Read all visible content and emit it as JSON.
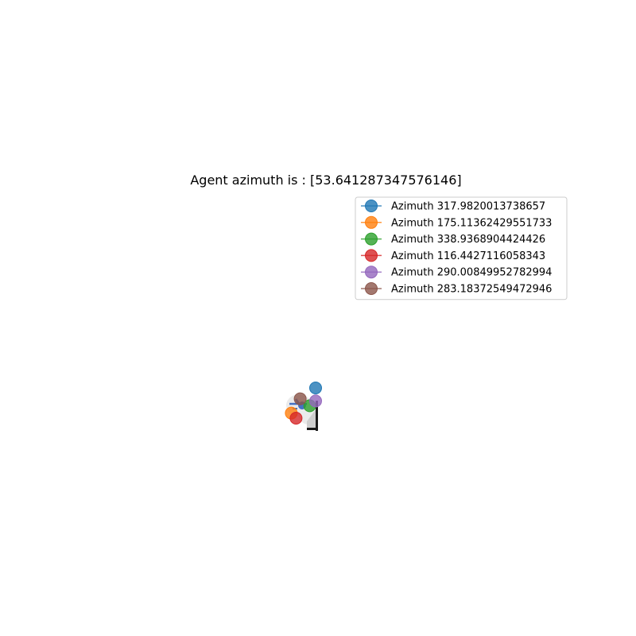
{
  "chart_data": {
    "type": "scatter",
    "title": "Agent azimuth is : [53.641287347576146]",
    "xlabel": "",
    "ylabel": "",
    "axes_visible": false,
    "grid": false,
    "legend_position": "upper-right",
    "series": [
      {
        "name": "Azimuth 317.9820013738657",
        "color": "#1f77b4",
        "x": [
          0.55
        ],
        "y": [
          1.1
        ]
      },
      {
        "name": "Azimuth 175.11362429551733",
        "color": "#ff7f0e",
        "x": [
          -0.98
        ],
        "y": [
          -0.48
        ]
      },
      {
        "name": "Azimuth 338.9368904424426",
        "color": "#2ca02c",
        "x": [
          0.18
        ],
        "y": [
          -0.02
        ]
      },
      {
        "name": "Azimuth 116.4427116058343",
        "color": "#d62728",
        "x": [
          -0.68
        ],
        "y": [
          -0.8
        ]
      },
      {
        "name": "Azimuth 290.00849952782994",
        "color": "#9467bd",
        "x": [
          0.55
        ],
        "y": [
          0.28
        ]
      },
      {
        "name": "Azimuth 283.18372549472946",
        "color": "#8c564b",
        "x": [
          -0.42
        ],
        "y": [
          0.42
        ]
      }
    ],
    "agent": {
      "azimuth": 53.641287347576146,
      "color": "#4472c4"
    },
    "scene": {
      "shadow_color": "#ebebeb",
      "object_color": "#1a1a1a"
    }
  }
}
